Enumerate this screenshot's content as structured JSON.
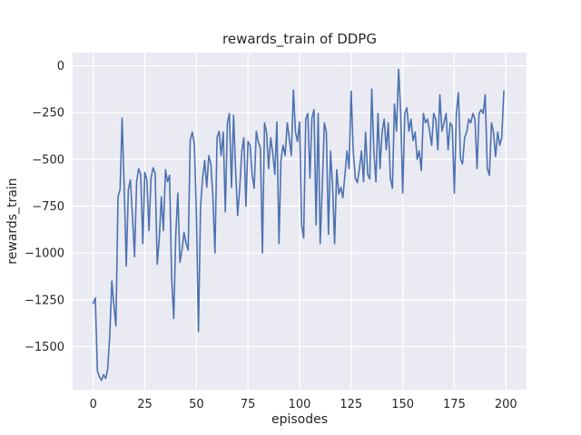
{
  "chart_data": {
    "type": "line",
    "title": "rewards_train of DDPG",
    "xlabel": "episodes",
    "ylabel": "rewards_train",
    "x_ticks": [
      0,
      25,
      50,
      75,
      100,
      125,
      150,
      175,
      200
    ],
    "x_tick_labels": [
      "0",
      "25",
      "50",
      "75",
      "100",
      "125",
      "150",
      "175",
      "200"
    ],
    "y_ticks": [
      0,
      -250,
      -500,
      -750,
      -1000,
      -1250,
      -1500
    ],
    "y_tick_labels": [
      "0",
      "−250",
      "−500",
      "−750",
      "−1000",
      "−1250",
      "−1500"
    ],
    "xlim": [
      -10,
      210
    ],
    "ylim": [
      -1730,
      70
    ],
    "grid": true,
    "legend": "none",
    "plot_bg": "#EAEAF2",
    "grid_color": "#FFFFFF",
    "line_color": "#4C72B0",
    "text_color": "#262626",
    "series": [
      {
        "name": "rewards_train",
        "x_start": 0,
        "x_step": 1,
        "values": [
          -1270,
          -1240,
          -1630,
          -1660,
          -1680,
          -1650,
          -1670,
          -1620,
          -1440,
          -1150,
          -1280,
          -1390,
          -700,
          -660,
          -280,
          -650,
          -1070,
          -660,
          -610,
          -800,
          -1020,
          -620,
          -550,
          -580,
          -950,
          -570,
          -610,
          -880,
          -600,
          -545,
          -575,
          -1060,
          -920,
          -700,
          -880,
          -555,
          -620,
          -585,
          -1140,
          -1350,
          -905,
          -680,
          -1050,
          -985,
          -890,
          -950,
          -985,
          -400,
          -355,
          -420,
          -805,
          -1420,
          -755,
          -600,
          -505,
          -650,
          -480,
          -525,
          -700,
          -1000,
          -385,
          -350,
          -480,
          -355,
          -780,
          -305,
          -255,
          -650,
          -265,
          -555,
          -800,
          -650,
          -455,
          -385,
          -750,
          -405,
          -425,
          -580,
          -655,
          -350,
          -405,
          -440,
          -1000,
          -305,
          -355,
          -550,
          -385,
          -470,
          -580,
          -300,
          -950,
          -505,
          -425,
          -480,
          -305,
          -385,
          -480,
          -130,
          -355,
          -405,
          -300,
          -850,
          -920,
          -285,
          -255,
          -600,
          -280,
          -235,
          -850,
          -255,
          -950,
          -650,
          -305,
          -355,
          -900,
          -455,
          -650,
          -950,
          -555,
          -685,
          -650,
          -705,
          -580,
          -455,
          -550,
          -135,
          -455,
          -600,
          -625,
          -550,
          -455,
          -620,
          -355,
          -580,
          -605,
          -125,
          -455,
          -620,
          -255,
          -550,
          -355,
          -285,
          -450,
          -305,
          -600,
          -655,
          -205,
          -350,
          -20,
          -255,
          -680,
          -255,
          -225,
          -350,
          -285,
          -400,
          -355,
          -500,
          -455,
          -560,
          -255,
          -305,
          -285,
          -350,
          -425,
          -255,
          -285,
          -450,
          -155,
          -350,
          -305,
          -255,
          -450,
          -305,
          -325,
          -680,
          -255,
          -145,
          -500,
          -525,
          -385,
          -355,
          -285,
          -305,
          -255,
          -285,
          -550,
          -255,
          -235,
          -255,
          -155,
          -550,
          -585,
          -305,
          -355,
          -485,
          -355,
          -425,
          -385,
          -135
        ]
      }
    ]
  }
}
